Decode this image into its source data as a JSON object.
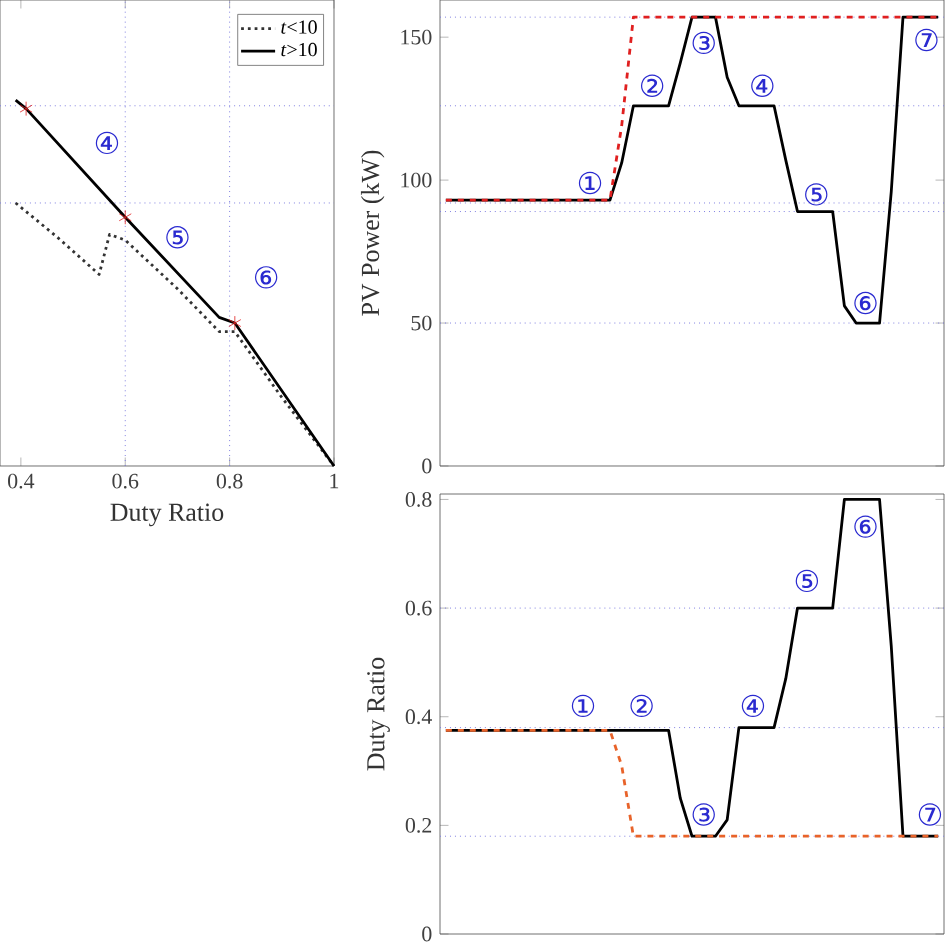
{
  "chart_data": [
    {
      "type": "line",
      "xlabel": "Duty Ratio",
      "xlim": [
        0.36,
        1
      ],
      "ylim": [
        0,
        163
      ],
      "xticks": [
        0.4,
        0.6,
        0.8,
        1
      ],
      "tick_labels": "x",
      "legend": "top right",
      "series": [
        {
          "name": "*t*<10",
          "color": "#333333",
          "line_style": "dotted",
          "x": [
            0.39,
            0.47,
            0.55,
            0.57,
            0.6,
            0.7,
            0.78,
            0.81,
            0.9,
            1
          ],
          "values": [
            92,
            80,
            67,
            81,
            79,
            62,
            47,
            47,
            24,
            0
          ]
        },
        {
          "name": "*t*>10",
          "color": "#000000",
          "line_style": "solid",
          "x": [
            0.39,
            0.41,
            0.6,
            0.78,
            0.81,
            1
          ],
          "values": [
            128,
            125,
            87,
            52,
            50,
            0
          ]
        },
        {
          "type": "scatter",
          "marker": "cross",
          "color": "#e02020",
          "x": [
            0.41,
            0.6,
            0.81
          ],
          "values": [
            125,
            87,
            50
          ]
        }
      ],
      "ref_lines": [
        {
          "axis": "x",
          "value": 0.6,
          "color": "#8080e0",
          "line_style": "dotted"
        },
        {
          "axis": "x",
          "value": 0.8,
          "color": "#8080e0",
          "line_style": "dotted"
        },
        {
          "axis": "y",
          "value": 126,
          "color": "#8080e0",
          "line_style": "dotted"
        },
        {
          "axis": "y",
          "value": 92,
          "color": "#8080e0",
          "line_style": "dotted"
        }
      ],
      "annotations": [
        "④",
        "⑤",
        "⑥"
      ]
    },
    {
      "type": "line",
      "ylabel": "PV Power (kW)",
      "ylim": [
        0,
        163
      ],
      "yticks": [
        0,
        50,
        100,
        150
      ],
      "tick_labels": "y",
      "categories": [
        null,
        null,
        null,
        null,
        null,
        null,
        null,
        null,
        null,
        null,
        null,
        null,
        null,
        null,
        null,
        null,
        null,
        null,
        null,
        null,
        null,
        null,
        null,
        null,
        null,
        null,
        null,
        null,
        null,
        null,
        null,
        null,
        null,
        null,
        null,
        null,
        null,
        null,
        null,
        null,
        null,
        null,
        null
      ],
      "series": [
        {
          "color": "#000000",
          "line_style": "solid",
          "values": [
            93,
            93,
            93,
            93,
            93,
            93,
            93,
            93,
            93,
            93,
            93,
            93,
            93,
            93,
            93,
            106,
            126,
            126,
            126,
            126,
            141,
            157,
            157,
            157,
            136,
            126,
            126,
            126,
            126,
            107,
            89,
            89,
            89,
            89,
            56,
            50,
            50,
            50,
            96,
            157,
            157,
            157,
            157
          ]
        },
        {
          "color": "#e02020",
          "line_style": "dashed",
          "values": [
            93,
            93,
            93,
            93,
            93,
            93,
            93,
            93,
            93,
            93,
            93,
            93,
            93,
            93,
            93,
            119,
            157,
            157,
            157,
            157,
            157,
            157,
            157,
            157,
            157,
            157,
            157,
            157,
            157,
            157,
            157,
            157,
            157,
            157,
            157,
            157,
            157,
            157,
            157,
            157,
            157,
            157,
            157
          ]
        }
      ],
      "ref_lines": [
        {
          "axis": "y",
          "value": 157,
          "color": "#8080e0",
          "line_style": "dotted"
        },
        {
          "axis": "y",
          "value": 126,
          "color": "#8080e0",
          "line_style": "dotted"
        },
        {
          "axis": "y",
          "value": 92,
          "color": "#8080e0",
          "line_style": "dotted"
        },
        {
          "axis": "y",
          "value": 89,
          "color": "#8080e0",
          "line_style": "dotted"
        },
        {
          "axis": "y",
          "value": 50,
          "color": "#8080e0",
          "line_style": "dotted"
        }
      ],
      "annotations": [
        "①",
        "②",
        "③",
        "④",
        "⑤",
        "⑥",
        "⑦"
      ]
    },
    {
      "type": "line",
      "ylabel": "Duty Ratio",
      "ylim": [
        0,
        0.81
      ],
      "yticks": [
        0,
        0.2,
        0.4,
        0.6,
        0.8
      ],
      "tick_labels": "y",
      "categories": [
        null,
        null,
        null,
        null,
        null,
        null,
        null,
        null,
        null,
        null,
        null,
        null,
        null,
        null,
        null,
        null,
        null,
        null,
        null,
        null,
        null,
        null,
        null,
        null,
        null,
        null,
        null,
        null,
        null,
        null,
        null,
        null,
        null,
        null,
        null,
        null,
        null,
        null,
        null,
        null,
        null,
        null,
        null
      ],
      "series": [
        {
          "color": "#000000",
          "line_style": "solid",
          "values": [
            0.375,
            0.375,
            0.375,
            0.375,
            0.375,
            0.375,
            0.375,
            0.375,
            0.375,
            0.375,
            0.375,
            0.375,
            0.375,
            0.375,
            0.375,
            0.375,
            0.375,
            0.375,
            0.375,
            0.375,
            0.25,
            0.18,
            0.18,
            0.18,
            0.21,
            0.38,
            0.38,
            0.38,
            0.38,
            0.47,
            0.6,
            0.6,
            0.6,
            0.6,
            0.8,
            0.8,
            0.8,
            0.8,
            0.53,
            0.18,
            0.18,
            0.18,
            0.18
          ]
        },
        {
          "color": "#e8632a",
          "line_style": "dashed",
          "values": [
            0.375,
            0.375,
            0.375,
            0.375,
            0.375,
            0.375,
            0.375,
            0.375,
            0.375,
            0.375,
            0.375,
            0.375,
            0.375,
            0.375,
            0.375,
            0.31,
            0.18,
            0.18,
            0.18,
            0.18,
            0.18,
            0.18,
            0.18,
            0.18,
            0.18,
            0.18,
            0.18,
            0.18,
            0.18,
            0.18,
            0.18,
            0.18,
            0.18,
            0.18,
            0.18,
            0.18,
            0.18,
            0.18,
            0.18,
            0.18,
            0.18,
            0.18,
            0.18
          ]
        }
      ],
      "ref_lines": [
        {
          "axis": "y",
          "value": 0.6,
          "color": "#8080e0",
          "line_style": "dotted"
        },
        {
          "axis": "y",
          "value": 0.38,
          "color": "#8080e0",
          "line_style": "dotted"
        },
        {
          "axis": "y",
          "value": 0.18,
          "color": "#8080e0",
          "line_style": "dotted"
        }
      ],
      "annotations": [
        "①",
        "②",
        "③",
        "④",
        "⑤",
        "⑥",
        "⑦"
      ]
    }
  ]
}
